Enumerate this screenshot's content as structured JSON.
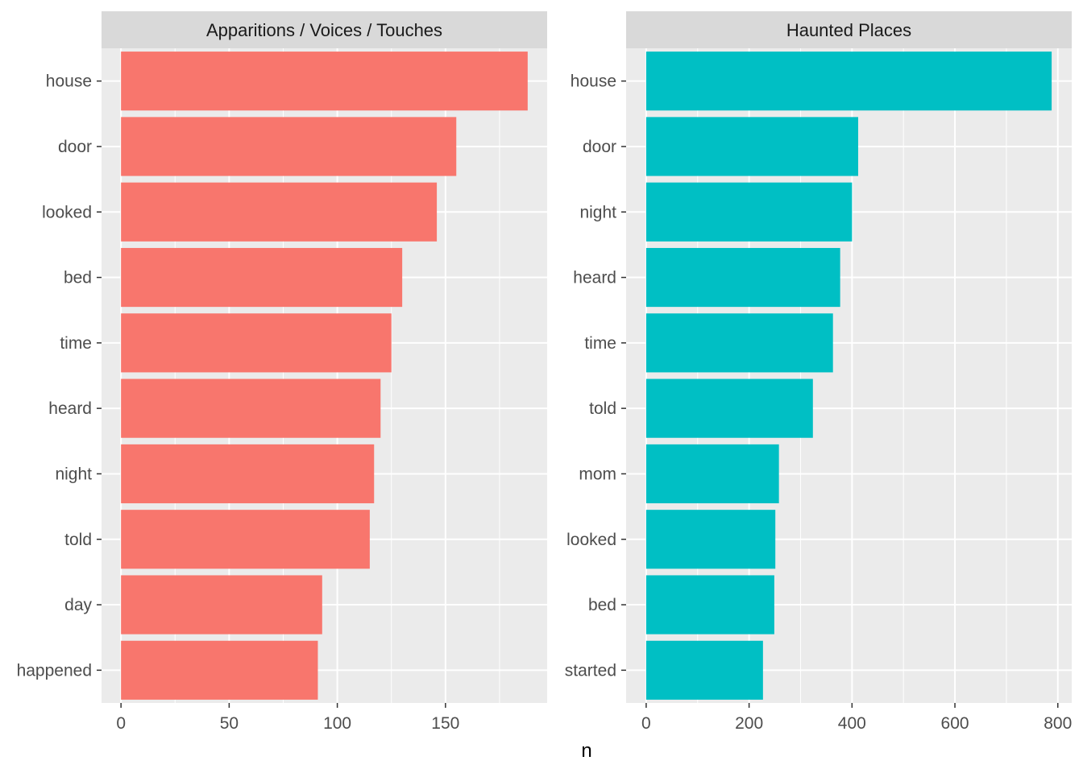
{
  "chart_data": {
    "type": "bar",
    "orientation": "horizontal",
    "xlabel": "n",
    "grid": true,
    "facets": [
      {
        "title": "Apparitions / Voices / Touches",
        "color": "#F8766D",
        "categories": [
          "house",
          "door",
          "looked",
          "bed",
          "time",
          "heard",
          "night",
          "told",
          "day",
          "happened"
        ],
        "values": [
          188,
          155,
          146,
          130,
          125,
          120,
          117,
          115,
          93,
          91
        ],
        "xlim": [
          -9,
          197
        ],
        "ticks": [
          0,
          50,
          100,
          150
        ]
      },
      {
        "title": "Haunted Places",
        "color": "#00BFC4",
        "categories": [
          "house",
          "door",
          "night",
          "heard",
          "time",
          "told",
          "mom",
          "looked",
          "bed",
          "started"
        ],
        "values": [
          788,
          412,
          400,
          377,
          363,
          324,
          258,
          251,
          249,
          227
        ],
        "xlim": [
          -39,
          827
        ],
        "ticks": [
          0,
          200,
          400,
          600,
          800
        ]
      }
    ]
  }
}
